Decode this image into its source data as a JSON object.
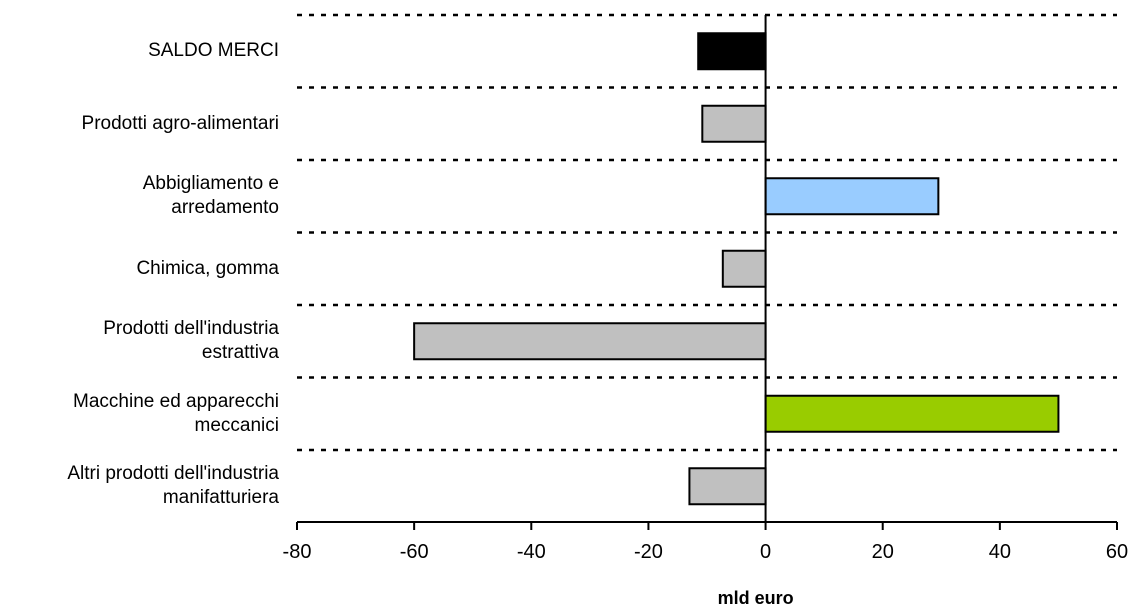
{
  "chart_data": {
    "type": "bar",
    "orientation": "horizontal",
    "categories": [
      "SALDO MERCI",
      "Prodotti agro-alimentari",
      "Abbigliamento e\narredamento",
      "Chimica, gomma",
      "Prodotti dell'industria\nestrattiva",
      "Macchine ed apparecchi\nmeccanici",
      "Altri prodotti dell'industria\nmanifatturiera"
    ],
    "values": [
      -11.5,
      -10.8,
      29.5,
      -7.3,
      -60.0,
      50.0,
      -13.0
    ],
    "colors": [
      "#000000",
      "#c0c0c0",
      "#99ccff",
      "#c0c0c0",
      "#c0c0c0",
      "#99cc00",
      "#c0c0c0"
    ],
    "xlabel": "mld euro",
    "xlim": [
      -80,
      60
    ],
    "xticks": [
      -80,
      -60,
      -40,
      -20,
      0,
      20,
      40,
      60
    ],
    "xtick_labels": [
      "-80",
      "-60",
      "-40",
      "-20",
      "0",
      "20",
      "40",
      "60"
    ],
    "grid": "dotted horizontal separators between categories"
  }
}
